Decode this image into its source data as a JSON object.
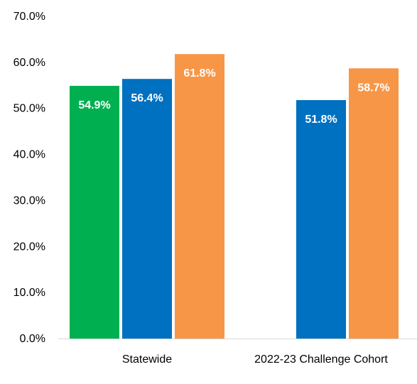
{
  "chart_data": {
    "type": "bar",
    "title": "",
    "xlabel": "",
    "ylabel": "",
    "ylim": [
      0,
      70
    ],
    "yticks": [
      "0.0%",
      "10.0%",
      "20.0%",
      "30.0%",
      "40.0%",
      "50.0%",
      "60.0%",
      "70.0%"
    ],
    "grid": false,
    "legend": "none",
    "categories": [
      "Statewide",
      "2022-23 Challenge Cohort"
    ],
    "series": [
      {
        "color": "#00b050",
        "values": [
          54.9,
          null
        ],
        "labels": [
          "54.9%",
          null
        ]
      },
      {
        "color": "#0070c0",
        "values": [
          56.4,
          51.8
        ],
        "labels": [
          "56.4%",
          "51.8%"
        ]
      },
      {
        "color": "#f79646",
        "values": [
          61.8,
          58.7
        ],
        "labels": [
          "61.8%",
          "58.7%"
        ]
      }
    ]
  }
}
